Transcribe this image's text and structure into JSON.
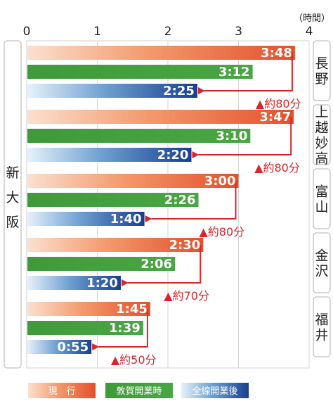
{
  "chart_data": {
    "type": "bar",
    "orientation": "horizontal",
    "origin": "新大阪",
    "x_unit": "（時間）",
    "x_ticks": [
      "0",
      "1",
      "2",
      "3",
      "4"
    ],
    "xlim": [
      0,
      4
    ],
    "grid": true,
    "series": [
      {
        "name": "現　行",
        "color": "#e8643c"
      },
      {
        "name": "敦賀開業時",
        "color": "#3f9a3a"
      },
      {
        "name": "全線開業後",
        "color": "#1e4f9c"
      }
    ],
    "groups": [
      {
        "destination": "長野",
        "times": [
          "3:48",
          "3:12",
          "2:25"
        ],
        "hours": [
          3.8,
          3.2,
          2.417
        ],
        "savings": "▲約80分"
      },
      {
        "destination": "上越妙高",
        "times": [
          "3:47",
          "3:10",
          "2:20"
        ],
        "hours": [
          3.783,
          3.167,
          2.333
        ],
        "savings": "▲約80分"
      },
      {
        "destination": "富山",
        "times": [
          "3:00",
          "2:26",
          "1:40"
        ],
        "hours": [
          3.0,
          2.433,
          1.667
        ],
        "savings": "▲約80分"
      },
      {
        "destination": "金沢",
        "times": [
          "2:30",
          "2:06",
          "1:20"
        ],
        "hours": [
          2.5,
          2.1,
          1.333
        ],
        "savings": "▲約70分"
      },
      {
        "destination": "福井",
        "times": [
          "1:45",
          "1:39",
          "0:55"
        ],
        "hours": [
          1.75,
          1.65,
          0.917
        ],
        "savings": "▲約50分"
      }
    ]
  }
}
